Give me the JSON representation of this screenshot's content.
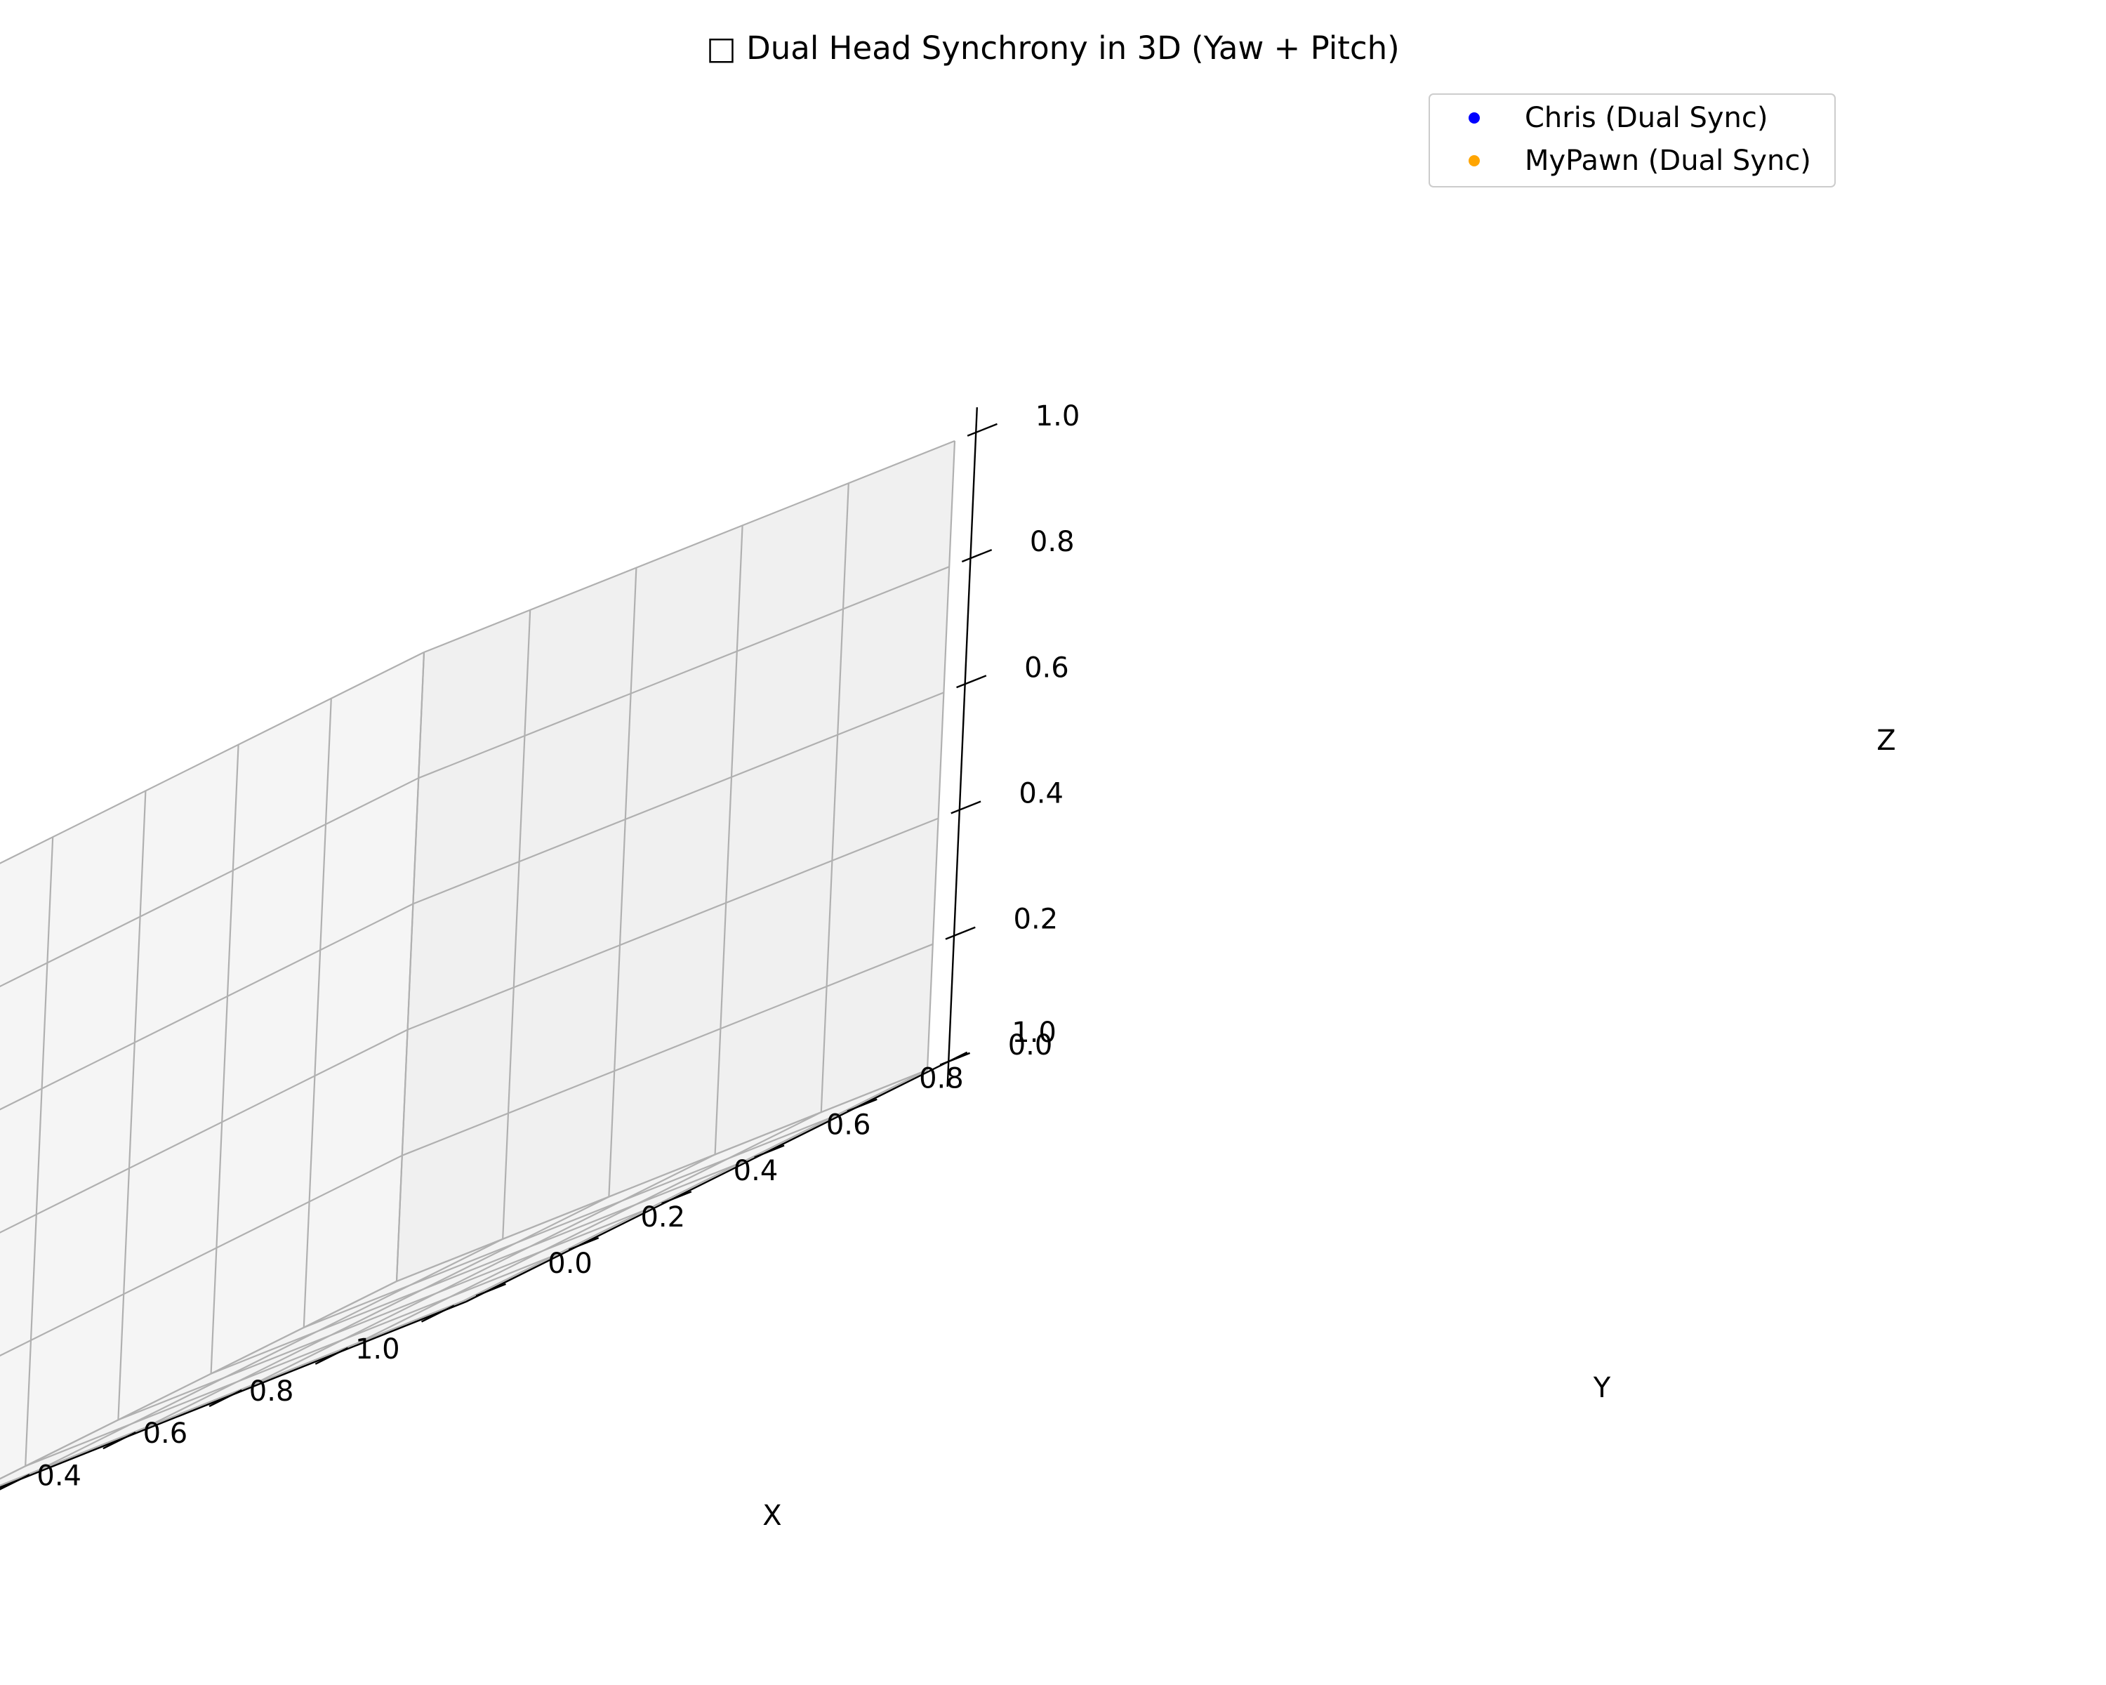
{
  "chart_data": {
    "type": "scatter",
    "projection": "3d",
    "title": "□ Dual Head Synchrony in 3D (Yaw + Pitch)",
    "xlabel": "X",
    "ylabel": "Y",
    "zlabel": "Z",
    "xlim": [
      0,
      1
    ],
    "ylim": [
      0,
      1
    ],
    "zlim": [
      0,
      1
    ],
    "x_ticks": [
      "0.0",
      "0.2",
      "0.4",
      "0.6",
      "0.8",
      "1.0"
    ],
    "y_ticks": [
      "0.0",
      "0.2",
      "0.4",
      "0.6",
      "0.8",
      "1.0"
    ],
    "z_ticks": [
      "0.0",
      "0.2",
      "0.4",
      "0.6",
      "0.8",
      "1.0"
    ],
    "grid": true,
    "legend_position": "top-right",
    "series": [
      {
        "name": "Chris (Dual Sync)",
        "color": "#0000ff",
        "points": []
      },
      {
        "name": "MyPawn (Dual Sync)",
        "color": "#ffa500",
        "points": []
      }
    ]
  }
}
